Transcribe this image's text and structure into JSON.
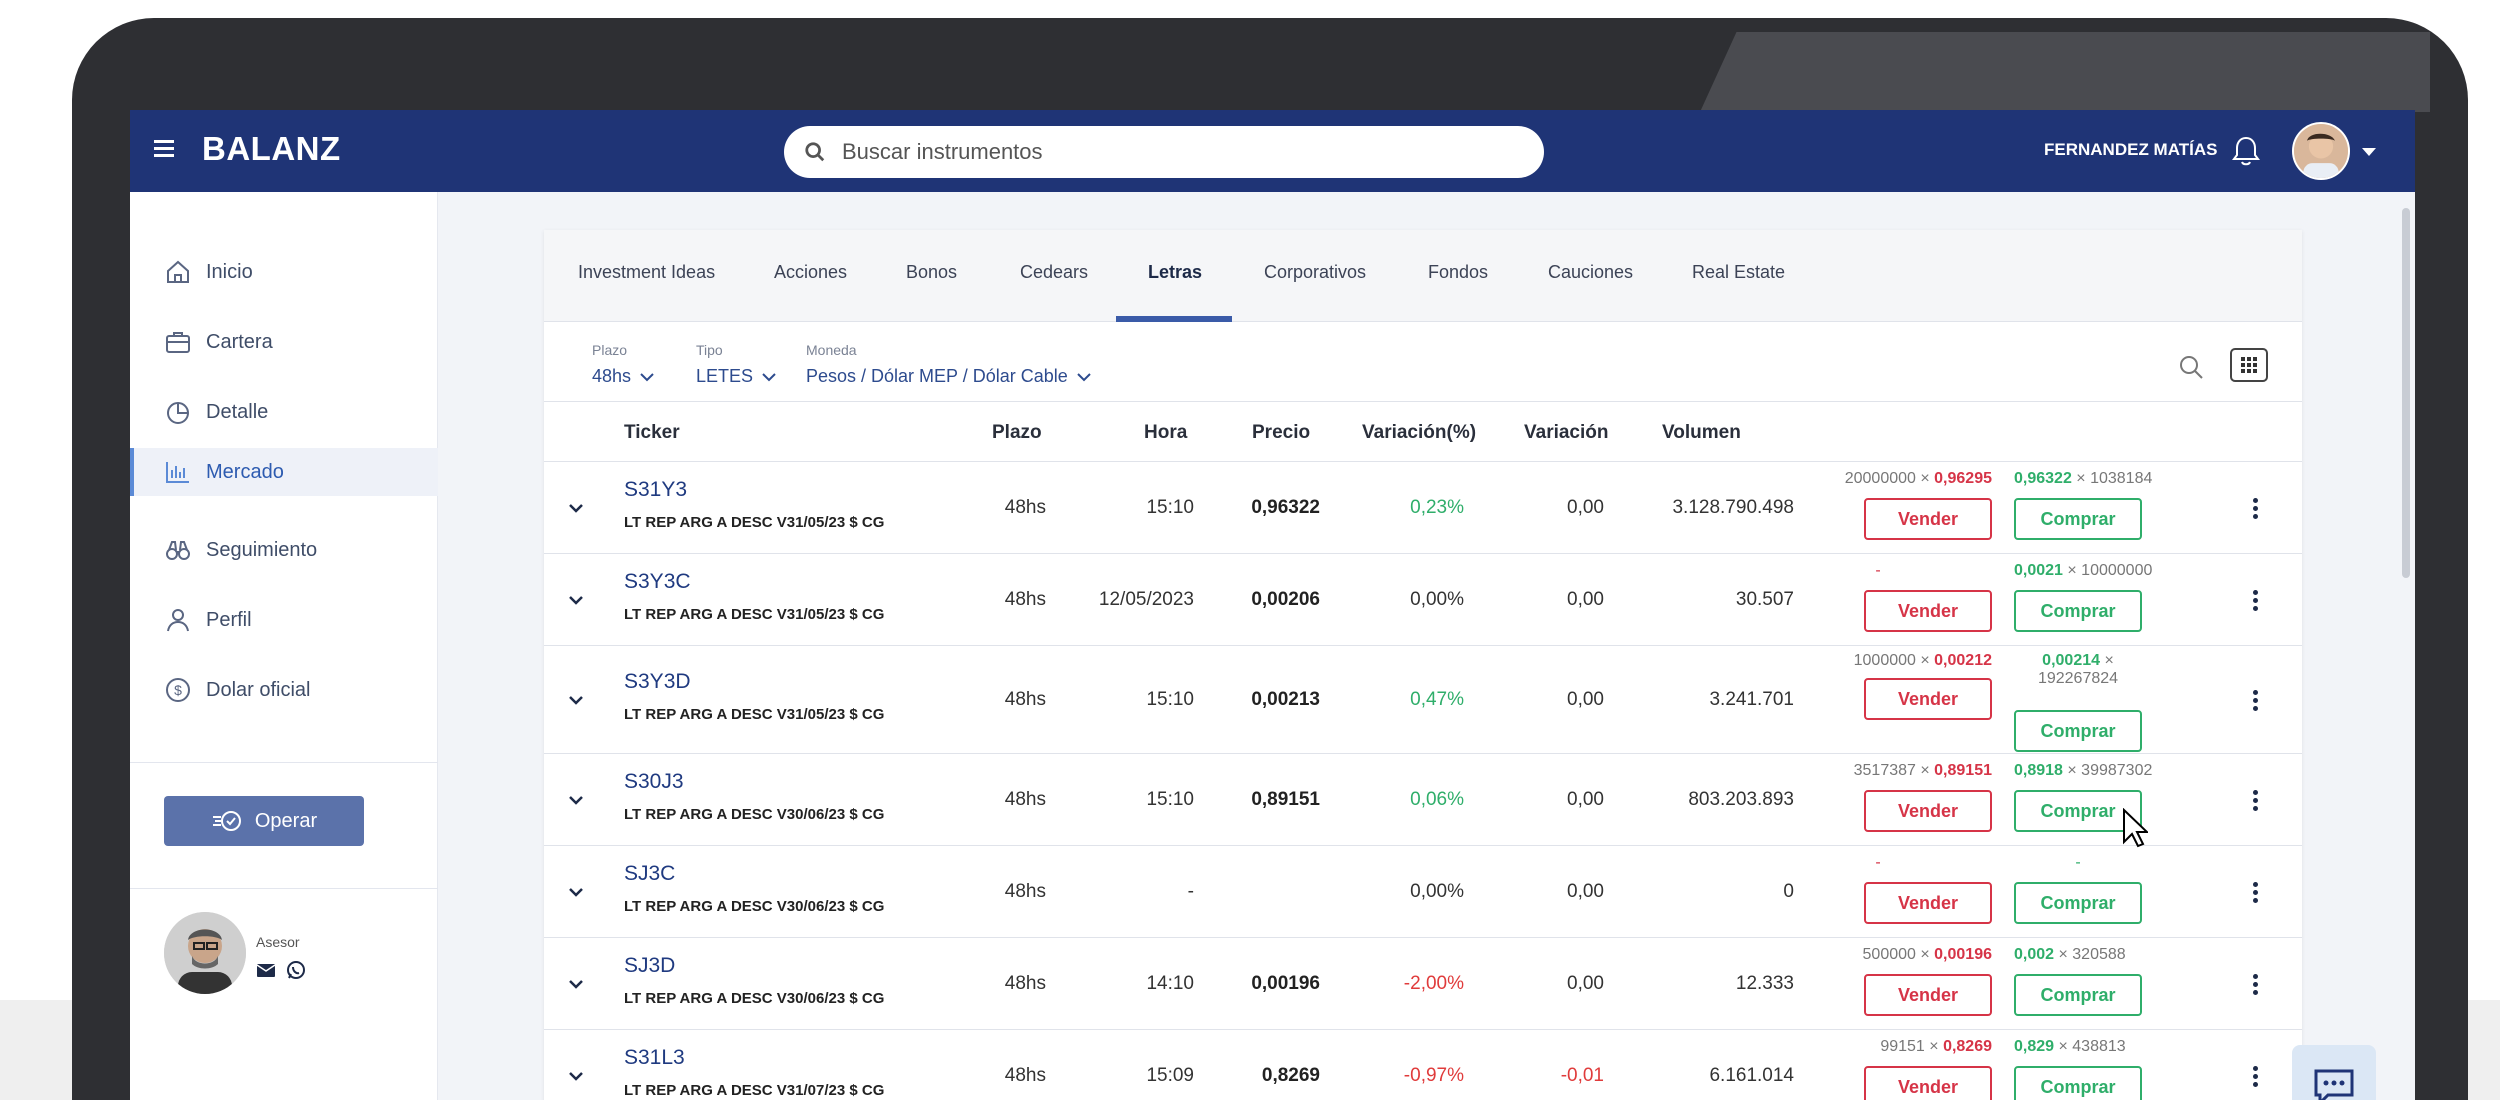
{
  "app": {
    "brand": "BALANZ"
  },
  "search": {
    "placeholder": "Buscar instrumentos"
  },
  "user": {
    "name": "FERNANDEZ MATÍAS"
  },
  "sidebar": {
    "items": [
      {
        "label": "Inicio",
        "icon": "home-icon"
      },
      {
        "label": "Cartera",
        "icon": "briefcase-icon"
      },
      {
        "label": "Detalle",
        "icon": "pie-chart-icon"
      },
      {
        "label": "Mercado",
        "icon": "bar-chart-icon",
        "active": true
      },
      {
        "label": "Seguimiento",
        "icon": "binoculars-icon"
      },
      {
        "label": "Perfil",
        "icon": "user-icon"
      },
      {
        "label": "Dolar oficial",
        "icon": "dollar-icon"
      }
    ],
    "operar": "Operar",
    "advisor_label": "Asesor"
  },
  "tabs": [
    "Investment Ideas",
    "Acciones",
    "Bonos",
    "Cedears",
    "Letras",
    "Corporativos",
    "Fondos",
    "Cauciones",
    "Real Estate"
  ],
  "active_tab": "Letras",
  "filters": {
    "plazo": {
      "label": "Plazo",
      "value": "48hs"
    },
    "tipo": {
      "label": "Tipo",
      "value": "LETES"
    },
    "moneda": {
      "label": "Moneda",
      "value": "Pesos / Dólar MEP / Dólar Cable"
    }
  },
  "table": {
    "headers": {
      "ticker": "Ticker",
      "plazo": "Plazo",
      "hora": "Hora",
      "precio": "Precio",
      "var_pct": "Variación(%)",
      "var": "Variación",
      "volumen": "Volumen"
    },
    "sell_label": "Vender",
    "buy_label": "Comprar",
    "rows": [
      {
        "ticker": "S31Y3",
        "desc": "LT REP ARG A DESC V31/05/23 $ CG",
        "plazo": "48hs",
        "hora": "15:10",
        "precio": "0,96322",
        "var_pct": "0,23%",
        "var": "0,00",
        "volumen": "3.128.790.498",
        "bid_qty": "20000000",
        "bid_px": "0,96295",
        "ask_px": "0,96322",
        "ask_qty": "1038184",
        "trend": "pos"
      },
      {
        "ticker": "S3Y3C",
        "desc": "LT REP ARG A DESC V31/05/23 $ CG",
        "plazo": "48hs",
        "hora": "12/05/2023",
        "precio": "0,00206",
        "var_pct": "0,00%",
        "var": "0,00",
        "volumen": "30.507",
        "bid_qty": "-",
        "bid_px": "",
        "ask_px": "0,0021",
        "ask_qty": "10000000",
        "trend": "flat"
      },
      {
        "ticker": "S3Y3D",
        "desc": "LT REP ARG A DESC V31/05/23 $ CG",
        "plazo": "48hs",
        "hora": "15:10",
        "precio": "0,00213",
        "var_pct": "0,47%",
        "var": "0,00",
        "volumen": "3.241.701",
        "bid_qty": "1000000",
        "bid_px": "0,00212",
        "ask_px": "0,00214",
        "ask_qty": "192267824",
        "trend": "pos"
      },
      {
        "ticker": "S30J3",
        "desc": "LT REP ARG A DESC V30/06/23 $ CG",
        "plazo": "48hs",
        "hora": "15:10",
        "precio": "0,89151",
        "var_pct": "0,06%",
        "var": "0,00",
        "volumen": "803.203.893",
        "bid_qty": "3517387",
        "bid_px": "0,89151",
        "ask_px": "0,8918",
        "ask_qty": "39987302",
        "trend": "pos"
      },
      {
        "ticker": "SJ3C",
        "desc": "LT REP ARG A DESC V30/06/23 $ CG",
        "plazo": "48hs",
        "hora": "-",
        "precio": "",
        "var_pct": "0,00%",
        "var": "0,00",
        "volumen": "0",
        "bid_qty": "-",
        "bid_px": "",
        "ask_px": "",
        "ask_qty": "-",
        "trend": "flat"
      },
      {
        "ticker": "SJ3D",
        "desc": "LT REP ARG A DESC V30/06/23 $ CG",
        "plazo": "48hs",
        "hora": "14:10",
        "precio": "0,00196",
        "var_pct": "-2,00%",
        "var": "0,00",
        "volumen": "12.333",
        "bid_qty": "500000",
        "bid_px": "0,00196",
        "ask_px": "0,002",
        "ask_qty": "320588",
        "trend": "neg"
      },
      {
        "ticker": "S31L3",
        "desc": "LT REP ARG A DESC V31/07/23 $ CG",
        "plazo": "48hs",
        "hora": "15:09",
        "precio": "0,8269",
        "var_pct": "-0,97%",
        "var": "-0,01",
        "volumen": "6.161.014",
        "bid_qty": "99151",
        "bid_px": "0,8269",
        "ask_px": "0,829",
        "ask_qty": "438813",
        "trend": "neg"
      }
    ]
  },
  "colors": {
    "navy": "#1f3476",
    "positive": "#2fae6a",
    "negative": "#d63447",
    "link": "#1f3a80"
  }
}
